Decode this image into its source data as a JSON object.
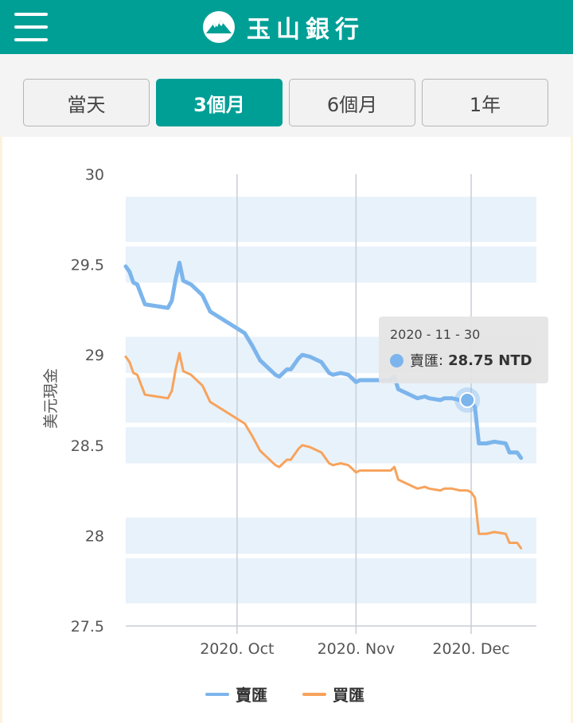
{
  "header": {
    "brand_name": "玉山銀行"
  },
  "range_tabs": [
    {
      "label": "當天",
      "active": false
    },
    {
      "label": "3個月",
      "active": true
    },
    {
      "label": "6個月",
      "active": false
    },
    {
      "label": "1年",
      "active": false
    }
  ],
  "colors": {
    "brand": "#009f96",
    "sell_line": "#7cb5ec",
    "buy_line": "#f7a35c",
    "plot_band": "#e8f2fb",
    "grid": "#c8ced6"
  },
  "tooltip": {
    "date": "2020 - 11 - 30",
    "series_label": "賣匯",
    "value_text": "28.75 NTD"
  },
  "legend": [
    {
      "label": "賣匯",
      "color": "#7cb5ec"
    },
    {
      "label": "買匯",
      "color": "#f7a35c"
    }
  ],
  "chart_data": {
    "type": "line",
    "title": "",
    "xlabel": "",
    "ylabel": "美元現金",
    "ylim": [
      27.5,
      30
    ],
    "yticks": [
      "30",
      "29.5",
      "29",
      "28.5",
      "28",
      "27.5"
    ],
    "x_range": [
      "2020-09-02",
      "2020-12-18"
    ],
    "x_ticks": [
      {
        "label": "2020. Oct",
        "date": "2020-10-01"
      },
      {
        "label": "2020. Nov",
        "date": "2020-11-01"
      },
      {
        "label": "2020. Dec",
        "date": "2020-12-01"
      }
    ],
    "grid": true,
    "legend_position": "bottom",
    "highlight": {
      "series": "賣匯",
      "date": "2020-11-30",
      "value": 28.75
    },
    "series": [
      {
        "name": "賣匯",
        "color": "#7cb5ec",
        "points": [
          [
            "2020-09-02",
            29.49
          ],
          [
            "2020-09-03",
            29.46
          ],
          [
            "2020-09-04",
            29.4
          ],
          [
            "2020-09-05",
            29.39
          ],
          [
            "2020-09-07",
            29.28
          ],
          [
            "2020-09-10",
            29.27
          ],
          [
            "2020-09-13",
            29.26
          ],
          [
            "2020-09-14",
            29.3
          ],
          [
            "2020-09-15",
            29.42
          ],
          [
            "2020-09-16",
            29.51
          ],
          [
            "2020-09-17",
            29.41
          ],
          [
            "2020-09-19",
            29.39
          ],
          [
            "2020-09-22",
            29.33
          ],
          [
            "2020-09-24",
            29.24
          ],
          [
            "2020-09-27",
            29.2
          ],
          [
            "2020-09-30",
            29.16
          ],
          [
            "2020-10-03",
            29.12
          ],
          [
            "2020-10-05",
            29.05
          ],
          [
            "2020-10-07",
            28.97
          ],
          [
            "2020-10-09",
            28.93
          ],
          [
            "2020-10-11",
            28.89
          ],
          [
            "2020-10-12",
            28.88
          ],
          [
            "2020-10-14",
            28.92
          ],
          [
            "2020-10-15",
            28.92
          ],
          [
            "2020-10-17",
            28.98
          ],
          [
            "2020-10-18",
            29.0
          ],
          [
            "2020-10-20",
            28.99
          ],
          [
            "2020-10-23",
            28.96
          ],
          [
            "2020-10-25",
            28.9
          ],
          [
            "2020-10-26",
            28.89
          ],
          [
            "2020-10-28",
            28.9
          ],
          [
            "2020-10-30",
            28.89
          ],
          [
            "2020-10-31",
            28.87
          ],
          [
            "2020-11-01",
            28.85
          ],
          [
            "2020-11-02",
            28.86
          ],
          [
            "2020-11-05",
            28.86
          ],
          [
            "2020-11-08",
            28.86
          ],
          [
            "2020-11-10",
            28.86
          ],
          [
            "2020-11-11",
            28.88
          ],
          [
            "2020-11-12",
            28.81
          ],
          [
            "2020-11-14",
            28.79
          ],
          [
            "2020-11-16",
            28.77
          ],
          [
            "2020-11-17",
            28.76
          ],
          [
            "2020-11-19",
            28.77
          ],
          [
            "2020-11-20",
            28.76
          ],
          [
            "2020-11-23",
            28.75
          ],
          [
            "2020-11-24",
            28.76
          ],
          [
            "2020-11-26",
            28.76
          ],
          [
            "2020-11-28",
            28.75
          ],
          [
            "2020-11-30",
            28.75
          ],
          [
            "2020-12-01",
            28.74
          ],
          [
            "2020-12-02",
            28.71
          ],
          [
            "2020-12-03",
            28.51
          ],
          [
            "2020-12-05",
            28.51
          ],
          [
            "2020-12-07",
            28.52
          ],
          [
            "2020-12-10",
            28.51
          ],
          [
            "2020-12-11",
            28.46
          ],
          [
            "2020-12-13",
            28.46
          ],
          [
            "2020-12-14",
            28.43
          ]
        ]
      },
      {
        "name": "買匯",
        "color": "#f7a35c",
        "points": [
          [
            "2020-09-02",
            28.99
          ],
          [
            "2020-09-03",
            28.96
          ],
          [
            "2020-09-04",
            28.9
          ],
          [
            "2020-09-05",
            28.89
          ],
          [
            "2020-09-07",
            28.78
          ],
          [
            "2020-09-10",
            28.77
          ],
          [
            "2020-09-13",
            28.76
          ],
          [
            "2020-09-14",
            28.8
          ],
          [
            "2020-09-15",
            28.92
          ],
          [
            "2020-09-16",
            29.01
          ],
          [
            "2020-09-17",
            28.91
          ],
          [
            "2020-09-19",
            28.89
          ],
          [
            "2020-09-22",
            28.83
          ],
          [
            "2020-09-24",
            28.74
          ],
          [
            "2020-09-27",
            28.7
          ],
          [
            "2020-09-30",
            28.66
          ],
          [
            "2020-10-03",
            28.62
          ],
          [
            "2020-10-05",
            28.55
          ],
          [
            "2020-10-07",
            28.47
          ],
          [
            "2020-10-09",
            28.43
          ],
          [
            "2020-10-11",
            28.39
          ],
          [
            "2020-10-12",
            28.38
          ],
          [
            "2020-10-14",
            28.42
          ],
          [
            "2020-10-15",
            28.42
          ],
          [
            "2020-10-17",
            28.48
          ],
          [
            "2020-10-18",
            28.5
          ],
          [
            "2020-10-20",
            28.49
          ],
          [
            "2020-10-23",
            28.46
          ],
          [
            "2020-10-25",
            28.4
          ],
          [
            "2020-10-26",
            28.39
          ],
          [
            "2020-10-28",
            28.4
          ],
          [
            "2020-10-30",
            28.39
          ],
          [
            "2020-10-31",
            28.37
          ],
          [
            "2020-11-01",
            28.35
          ],
          [
            "2020-11-02",
            28.36
          ],
          [
            "2020-11-05",
            28.36
          ],
          [
            "2020-11-08",
            28.36
          ],
          [
            "2020-11-10",
            28.36
          ],
          [
            "2020-11-11",
            28.38
          ],
          [
            "2020-11-12",
            28.31
          ],
          [
            "2020-11-14",
            28.29
          ],
          [
            "2020-11-16",
            28.27
          ],
          [
            "2020-11-17",
            28.26
          ],
          [
            "2020-11-19",
            28.27
          ],
          [
            "2020-11-20",
            28.26
          ],
          [
            "2020-11-23",
            28.25
          ],
          [
            "2020-11-24",
            28.26
          ],
          [
            "2020-11-26",
            28.26
          ],
          [
            "2020-11-28",
            28.25
          ],
          [
            "2020-11-30",
            28.25
          ],
          [
            "2020-12-01",
            28.24
          ],
          [
            "2020-12-02",
            28.21
          ],
          [
            "2020-12-03",
            28.01
          ],
          [
            "2020-12-05",
            28.01
          ],
          [
            "2020-12-07",
            28.02
          ],
          [
            "2020-12-10",
            28.01
          ],
          [
            "2020-12-11",
            27.96
          ],
          [
            "2020-12-13",
            27.96
          ],
          [
            "2020-12-14",
            27.93
          ]
        ]
      }
    ]
  }
}
